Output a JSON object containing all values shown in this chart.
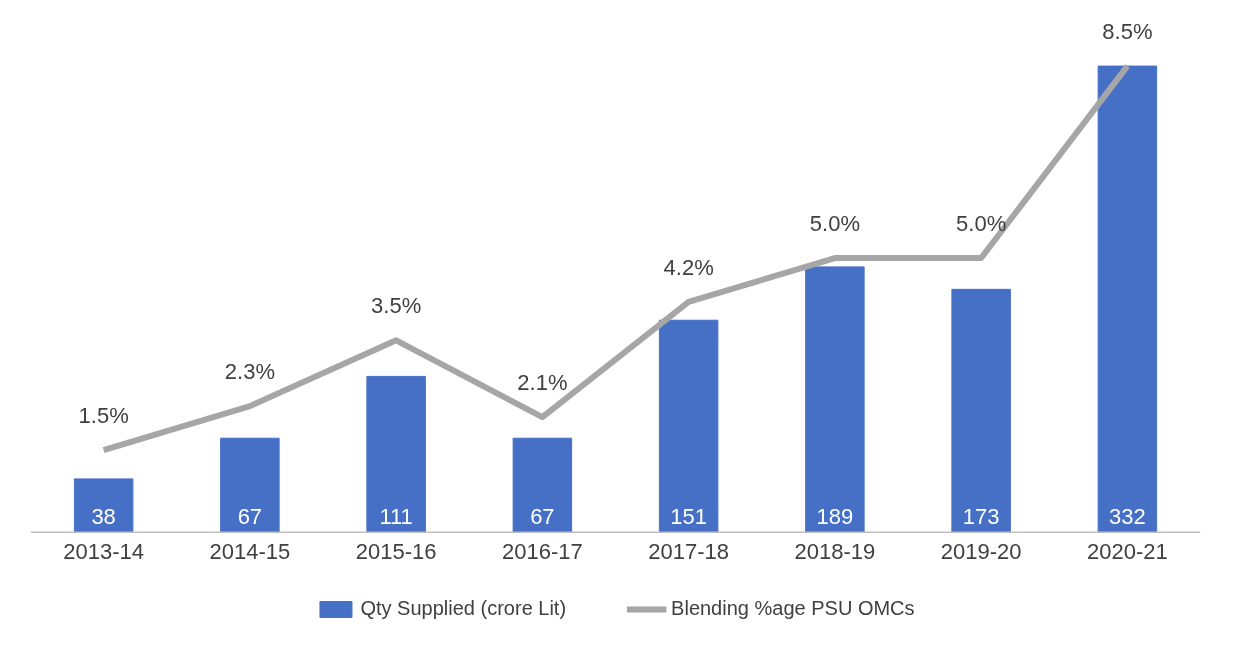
{
  "chart_data": {
    "type": "bar",
    "categories": [
      "2013-14",
      "2014-15",
      "2015-16",
      "2016-17",
      "2017-18",
      "2018-19",
      "2019-20",
      "2020-21"
    ],
    "series": [
      {
        "name": "Qty Supplied (crore Lit)",
        "color": "#4670c6",
        "values": [
          38,
          67,
          111,
          67,
          151,
          189,
          173,
          332
        ],
        "value_labels": [
          "38",
          "67",
          "111",
          "67",
          "151",
          "189",
          "173",
          "332"
        ]
      },
      {
        "name": "Blending %age PSU OMCs",
        "type": "line",
        "axis": "y2",
        "color": "#a6a6a6",
        "line_style": "solid",
        "values": [
          1.5,
          2.3,
          3.5,
          2.1,
          4.2,
          5.0,
          5.0,
          8.5
        ],
        "value_labels": [
          "1.5%",
          "2.3%",
          "3.5%",
          "2.1%",
          "4.2%",
          "5.0%",
          "5.0%",
          "8.5%"
        ]
      }
    ],
    "grid": false,
    "legend": "bottom",
    "tick_labels": "x"
  }
}
